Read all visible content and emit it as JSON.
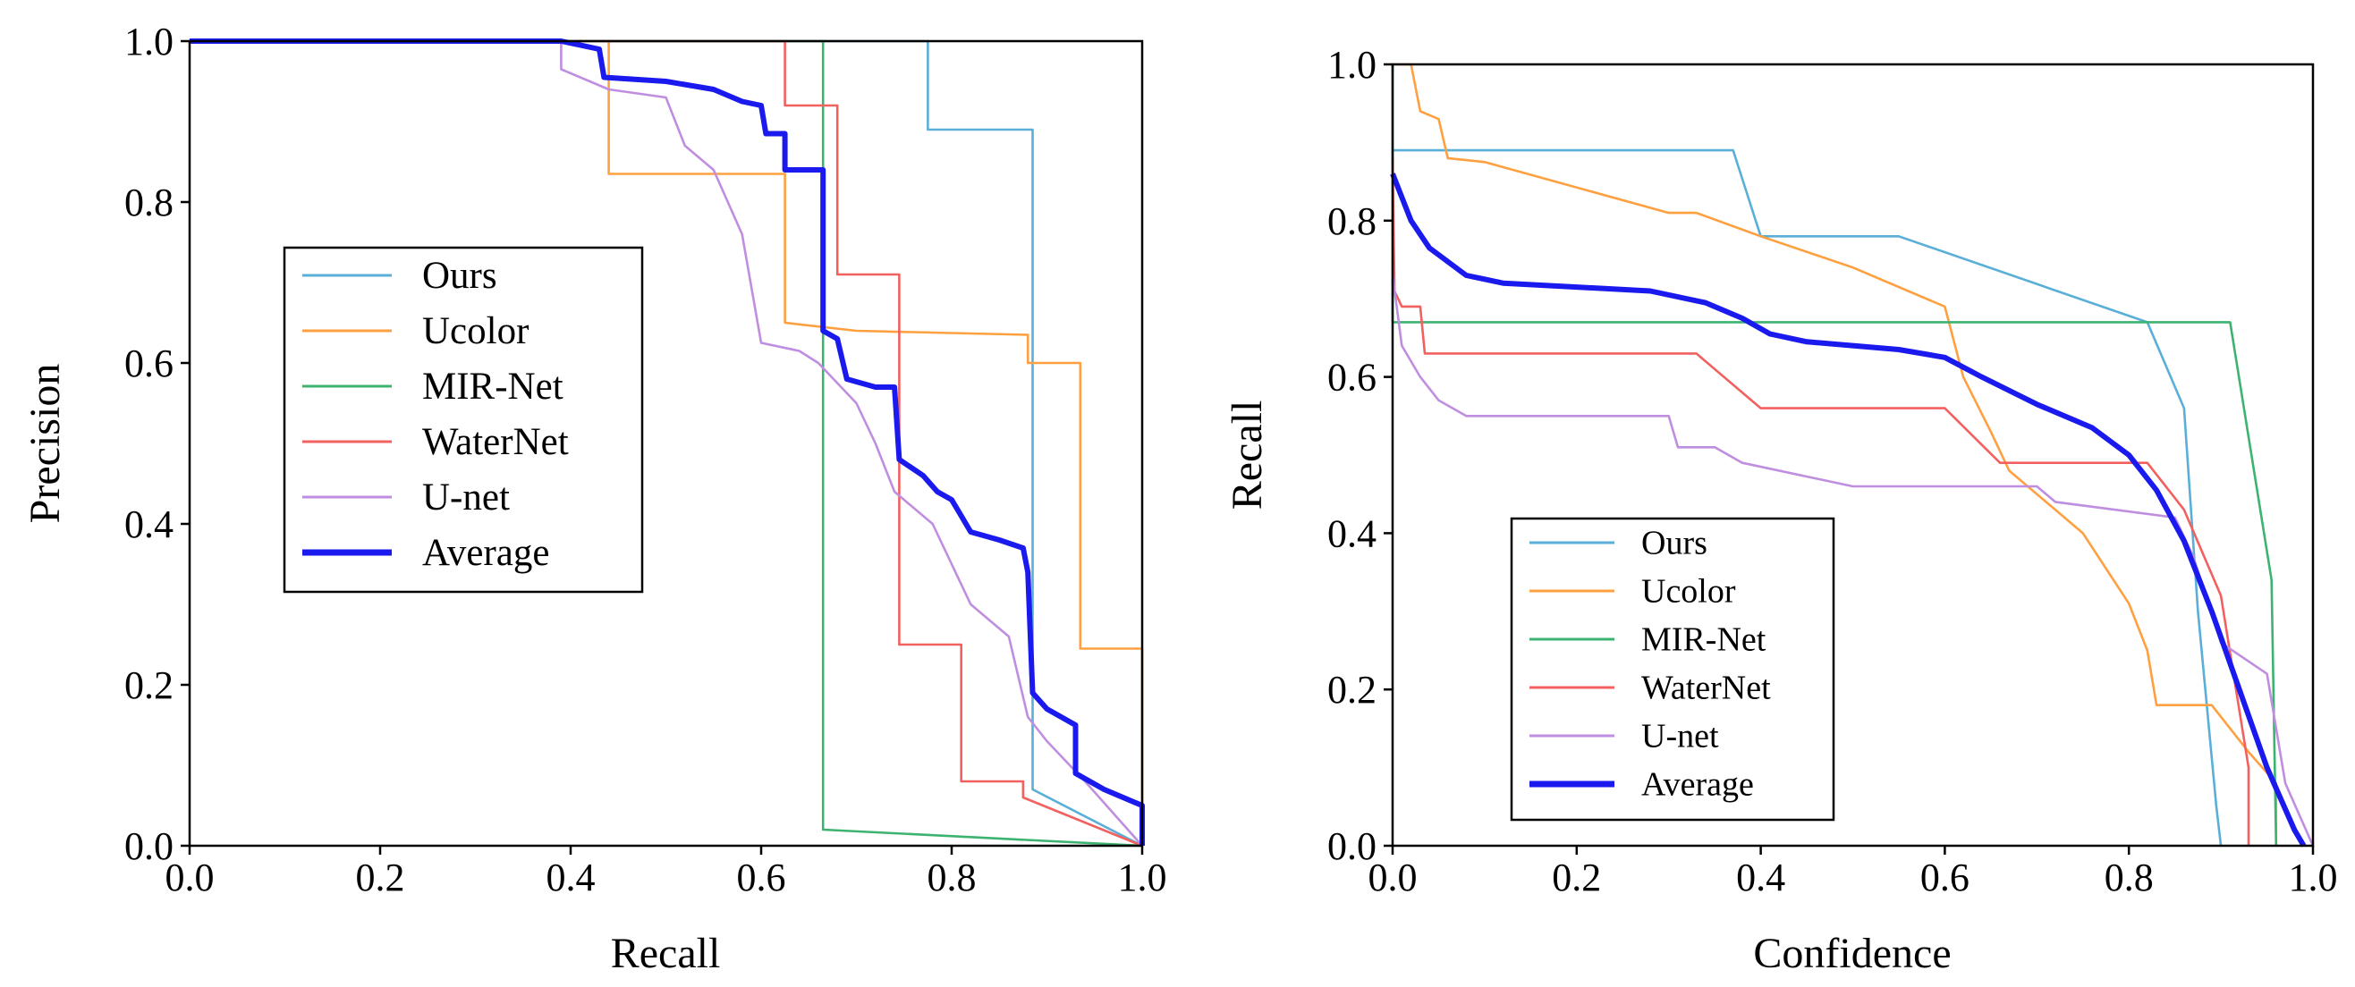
{
  "chart_data": [
    {
      "type": "line",
      "title": "",
      "xlabel": "Recall",
      "ylabel": "Precision",
      "xlim": [
        0,
        1
      ],
      "ylim": [
        0,
        1
      ],
      "xticks": [
        "0.0",
        "0.2",
        "0.4",
        "0.6",
        "0.8",
        "1.0"
      ],
      "yticks": [
        "0.0",
        "0.2",
        "0.4",
        "0.6",
        "0.8",
        "1.0"
      ],
      "grid": false,
      "legend_position": "center-left",
      "series": [
        {
          "name": "Ours",
          "color": "#5aafd8",
          "width": "thin",
          "points": [
            [
              0,
              1
            ],
            [
              0.775,
              1
            ],
            [
              0.775,
              0.89
            ],
            [
              0.885,
              0.89
            ],
            [
              0.885,
              0.07
            ],
            [
              1,
              0
            ]
          ]
        },
        {
          "name": "Ucolor",
          "color": "#ffa040",
          "width": "thin",
          "points": [
            [
              0,
              1
            ],
            [
              0.44,
              1
            ],
            [
              0.44,
              0.835
            ],
            [
              0.625,
              0.835
            ],
            [
              0.625,
              0.65
            ],
            [
              0.7,
              0.64
            ],
            [
              0.88,
              0.635
            ],
            [
              0.88,
              0.6
            ],
            [
              0.935,
              0.6
            ],
            [
              0.935,
              0.245
            ],
            [
              1,
              0.245
            ],
            [
              1,
              0
            ]
          ]
        },
        {
          "name": "MIR-Net",
          "color": "#3cb371",
          "width": "thin",
          "points": [
            [
              0,
              1
            ],
            [
              0.665,
              1
            ],
            [
              0.665,
              0.02
            ],
            [
              1,
              0
            ]
          ]
        },
        {
          "name": "WaterNet",
          "color": "#f26060",
          "width": "thin",
          "points": [
            [
              0,
              1
            ],
            [
              0.625,
              1
            ],
            [
              0.625,
              0.92
            ],
            [
              0.68,
              0.92
            ],
            [
              0.68,
              0.71
            ],
            [
              0.745,
              0.71
            ],
            [
              0.745,
              0.25
            ],
            [
              0.81,
              0.25
            ],
            [
              0.81,
              0.08
            ],
            [
              0.875,
              0.08
            ],
            [
              0.875,
              0.06
            ],
            [
              1,
              0
            ]
          ]
        },
        {
          "name": "U-net",
          "color": "#c08ee0",
          "width": "thin",
          "points": [
            [
              0,
              1
            ],
            [
              0.39,
              1
            ],
            [
              0.39,
              0.965
            ],
            [
              0.44,
              0.94
            ],
            [
              0.5,
              0.93
            ],
            [
              0.52,
              0.87
            ],
            [
              0.55,
              0.84
            ],
            [
              0.58,
              0.76
            ],
            [
              0.6,
              0.625
            ],
            [
              0.64,
              0.615
            ],
            [
              0.66,
              0.6
            ],
            [
              0.7,
              0.55
            ],
            [
              0.72,
              0.5
            ],
            [
              0.74,
              0.44
            ],
            [
              0.78,
              0.4
            ],
            [
              0.8,
              0.35
            ],
            [
              0.82,
              0.3
            ],
            [
              0.84,
              0.28
            ],
            [
              0.86,
              0.26
            ],
            [
              0.88,
              0.16
            ],
            [
              0.9,
              0.13
            ],
            [
              0.94,
              0.08
            ],
            [
              1,
              0
            ]
          ]
        },
        {
          "name": "Average",
          "color": "#1a1aee",
          "width": "thick",
          "points": [
            [
              0,
              1
            ],
            [
              0.39,
              1
            ],
            [
              0.43,
              0.99
            ],
            [
              0.435,
              0.955
            ],
            [
              0.5,
              0.95
            ],
            [
              0.55,
              0.94
            ],
            [
              0.58,
              0.925
            ],
            [
              0.6,
              0.92
            ],
            [
              0.605,
              0.885
            ],
            [
              0.625,
              0.885
            ],
            [
              0.625,
              0.84
            ],
            [
              0.665,
              0.84
            ],
            [
              0.665,
              0.64
            ],
            [
              0.68,
              0.63
            ],
            [
              0.69,
              0.58
            ],
            [
              0.72,
              0.57
            ],
            [
              0.74,
              0.57
            ],
            [
              0.745,
              0.48
            ],
            [
              0.77,
              0.46
            ],
            [
              0.785,
              0.44
            ],
            [
              0.8,
              0.43
            ],
            [
              0.81,
              0.41
            ],
            [
              0.82,
              0.39
            ],
            [
              0.85,
              0.38
            ],
            [
              0.875,
              0.37
            ],
            [
              0.88,
              0.34
            ],
            [
              0.885,
              0.19
            ],
            [
              0.9,
              0.17
            ],
            [
              0.93,
              0.15
            ],
            [
              0.93,
              0.09
            ],
            [
              0.96,
              0.07
            ],
            [
              1,
              0.05
            ],
            [
              1,
              0
            ]
          ]
        }
      ]
    },
    {
      "type": "line",
      "title": "",
      "xlabel": "Confidence",
      "ylabel": "Recall",
      "xlim": [
        0,
        1
      ],
      "ylim": [
        0,
        1
      ],
      "xticks": [
        "0.0",
        "0.2",
        "0.4",
        "0.6",
        "0.8",
        "1.0"
      ],
      "yticks": [
        "0.0",
        "0.2",
        "0.4",
        "0.6",
        "0.8",
        "1.0"
      ],
      "grid": false,
      "legend_position": "bottom-left",
      "series": [
        {
          "name": "Ours",
          "color": "#5aafd8",
          "width": "thin",
          "points": [
            [
              0,
              0.89
            ],
            [
              0.37,
              0.89
            ],
            [
              0.4,
              0.78
            ],
            [
              0.55,
              0.78
            ],
            [
              0.82,
              0.67
            ],
            [
              0.86,
              0.56
            ],
            [
              0.875,
              0.3
            ],
            [
              0.895,
              0.05
            ],
            [
              0.9,
              0
            ]
          ]
        },
        {
          "name": "Ucolor",
          "color": "#ffa040",
          "width": "thin",
          "points": [
            [
              0,
              1
            ],
            [
              0.02,
              1
            ],
            [
              0.03,
              0.94
            ],
            [
              0.05,
              0.93
            ],
            [
              0.06,
              0.88
            ],
            [
              0.1,
              0.875
            ],
            [
              0.3,
              0.81
            ],
            [
              0.33,
              0.81
            ],
            [
              0.4,
              0.78
            ],
            [
              0.5,
              0.74
            ],
            [
              0.6,
              0.69
            ],
            [
              0.62,
              0.6
            ],
            [
              0.65,
              0.53
            ],
            [
              0.67,
              0.48
            ],
            [
              0.75,
              0.4
            ],
            [
              0.8,
              0.31
            ],
            [
              0.82,
              0.25
            ],
            [
              0.83,
              0.18
            ],
            [
              0.89,
              0.18
            ],
            [
              0.93,
              0.12
            ],
            [
              0.96,
              0.08
            ],
            [
              0.96,
              0
            ]
          ]
        },
        {
          "name": "MIR-Net",
          "color": "#3cb371",
          "width": "thin",
          "points": [
            [
              0,
              1
            ],
            [
              0,
              0.67
            ],
            [
              0.91,
              0.67
            ],
            [
              0.955,
              0.34
            ],
            [
              0.96,
              0
            ]
          ]
        },
        {
          "name": "WaterNet",
          "color": "#f26060",
          "width": "thin",
          "points": [
            [
              0,
              0.88
            ],
            [
              0.002,
              0.71
            ],
            [
              0.01,
              0.69
            ],
            [
              0.03,
              0.69
            ],
            [
              0.035,
              0.63
            ],
            [
              0.33,
              0.63
            ],
            [
              0.4,
              0.56
            ],
            [
              0.6,
              0.56
            ],
            [
              0.66,
              0.49
            ],
            [
              0.82,
              0.49
            ],
            [
              0.86,
              0.43
            ],
            [
              0.9,
              0.32
            ],
            [
              0.93,
              0.1
            ],
            [
              0.93,
              0
            ]
          ]
        },
        {
          "name": "U-net",
          "color": "#c08ee0",
          "width": "thin",
          "points": [
            [
              0,
              0.73
            ],
            [
              0.01,
              0.64
            ],
            [
              0.03,
              0.6
            ],
            [
              0.05,
              0.57
            ],
            [
              0.08,
              0.55
            ],
            [
              0.3,
              0.55
            ],
            [
              0.31,
              0.51
            ],
            [
              0.35,
              0.51
            ],
            [
              0.38,
              0.49
            ],
            [
              0.5,
              0.46
            ],
            [
              0.7,
              0.46
            ],
            [
              0.72,
              0.44
            ],
            [
              0.85,
              0.42
            ],
            [
              0.87,
              0.37
            ],
            [
              0.9,
              0.26
            ],
            [
              0.95,
              0.22
            ],
            [
              0.97,
              0.08
            ],
            [
              1,
              0
            ]
          ]
        },
        {
          "name": "Average",
          "color": "#1a1aee",
          "width": "thick",
          "points": [
            [
              0,
              0.86
            ],
            [
              0.02,
              0.8
            ],
            [
              0.04,
              0.765
            ],
            [
              0.08,
              0.73
            ],
            [
              0.12,
              0.72
            ],
            [
              0.2,
              0.715
            ],
            [
              0.28,
              0.71
            ],
            [
              0.34,
              0.695
            ],
            [
              0.38,
              0.675
            ],
            [
              0.41,
              0.655
            ],
            [
              0.45,
              0.645
            ],
            [
              0.5,
              0.64
            ],
            [
              0.55,
              0.635
            ],
            [
              0.6,
              0.625
            ],
            [
              0.64,
              0.6
            ],
            [
              0.7,
              0.565
            ],
            [
              0.76,
              0.535
            ],
            [
              0.8,
              0.5
            ],
            [
              0.83,
              0.455
            ],
            [
              0.86,
              0.39
            ],
            [
              0.89,
              0.3
            ],
            [
              0.92,
              0.2
            ],
            [
              0.95,
              0.1
            ],
            [
              0.98,
              0.02
            ],
            [
              0.99,
              0
            ]
          ]
        }
      ]
    }
  ]
}
